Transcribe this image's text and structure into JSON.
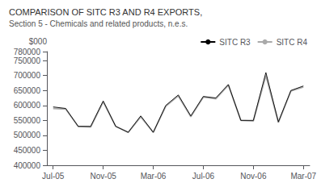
{
  "chart_data": {
    "type": "line",
    "title": "COMPARISON OF SITC R3 AND R4 EXPORTS,",
    "subtitle": "Section 5 - Chemicals and related products, n.e.s.",
    "ylabel": "$000",
    "categories": [
      "Jul-05",
      null,
      null,
      null,
      "Nov-05",
      null,
      null,
      null,
      "Mar-06",
      null,
      null,
      null,
      "Jul-06",
      null,
      null,
      null,
      "Nov-06",
      null,
      null,
      null,
      "Mar-07"
    ],
    "series": [
      {
        "name": "SITC R4",
        "color": "#aaaaaa",
        "values": [
          590000,
          588000,
          530000,
          528000,
          612000,
          530000,
          510000,
          562000,
          510000,
          597000,
          632000,
          562000,
          628000,
          622000,
          668000,
          550000,
          548000,
          700000,
          543000,
          648000,
          662000
        ]
      },
      {
        "name": "SITC R3",
        "color": "#000000",
        "values": [
          595000,
          590000,
          530000,
          530000,
          615000,
          530000,
          510000,
          565000,
          510000,
          600000,
          635000,
          565000,
          630000,
          625000,
          670000,
          550000,
          550000,
          710000,
          545000,
          650000,
          665000
        ]
      }
    ],
    "ylim": [
      400000,
      780000
    ],
    "yticks": [
      400000,
      450000,
      500000,
      550000,
      600000,
      650000,
      700000,
      750000
    ],
    "grid": false,
    "legend": "upper right"
  }
}
